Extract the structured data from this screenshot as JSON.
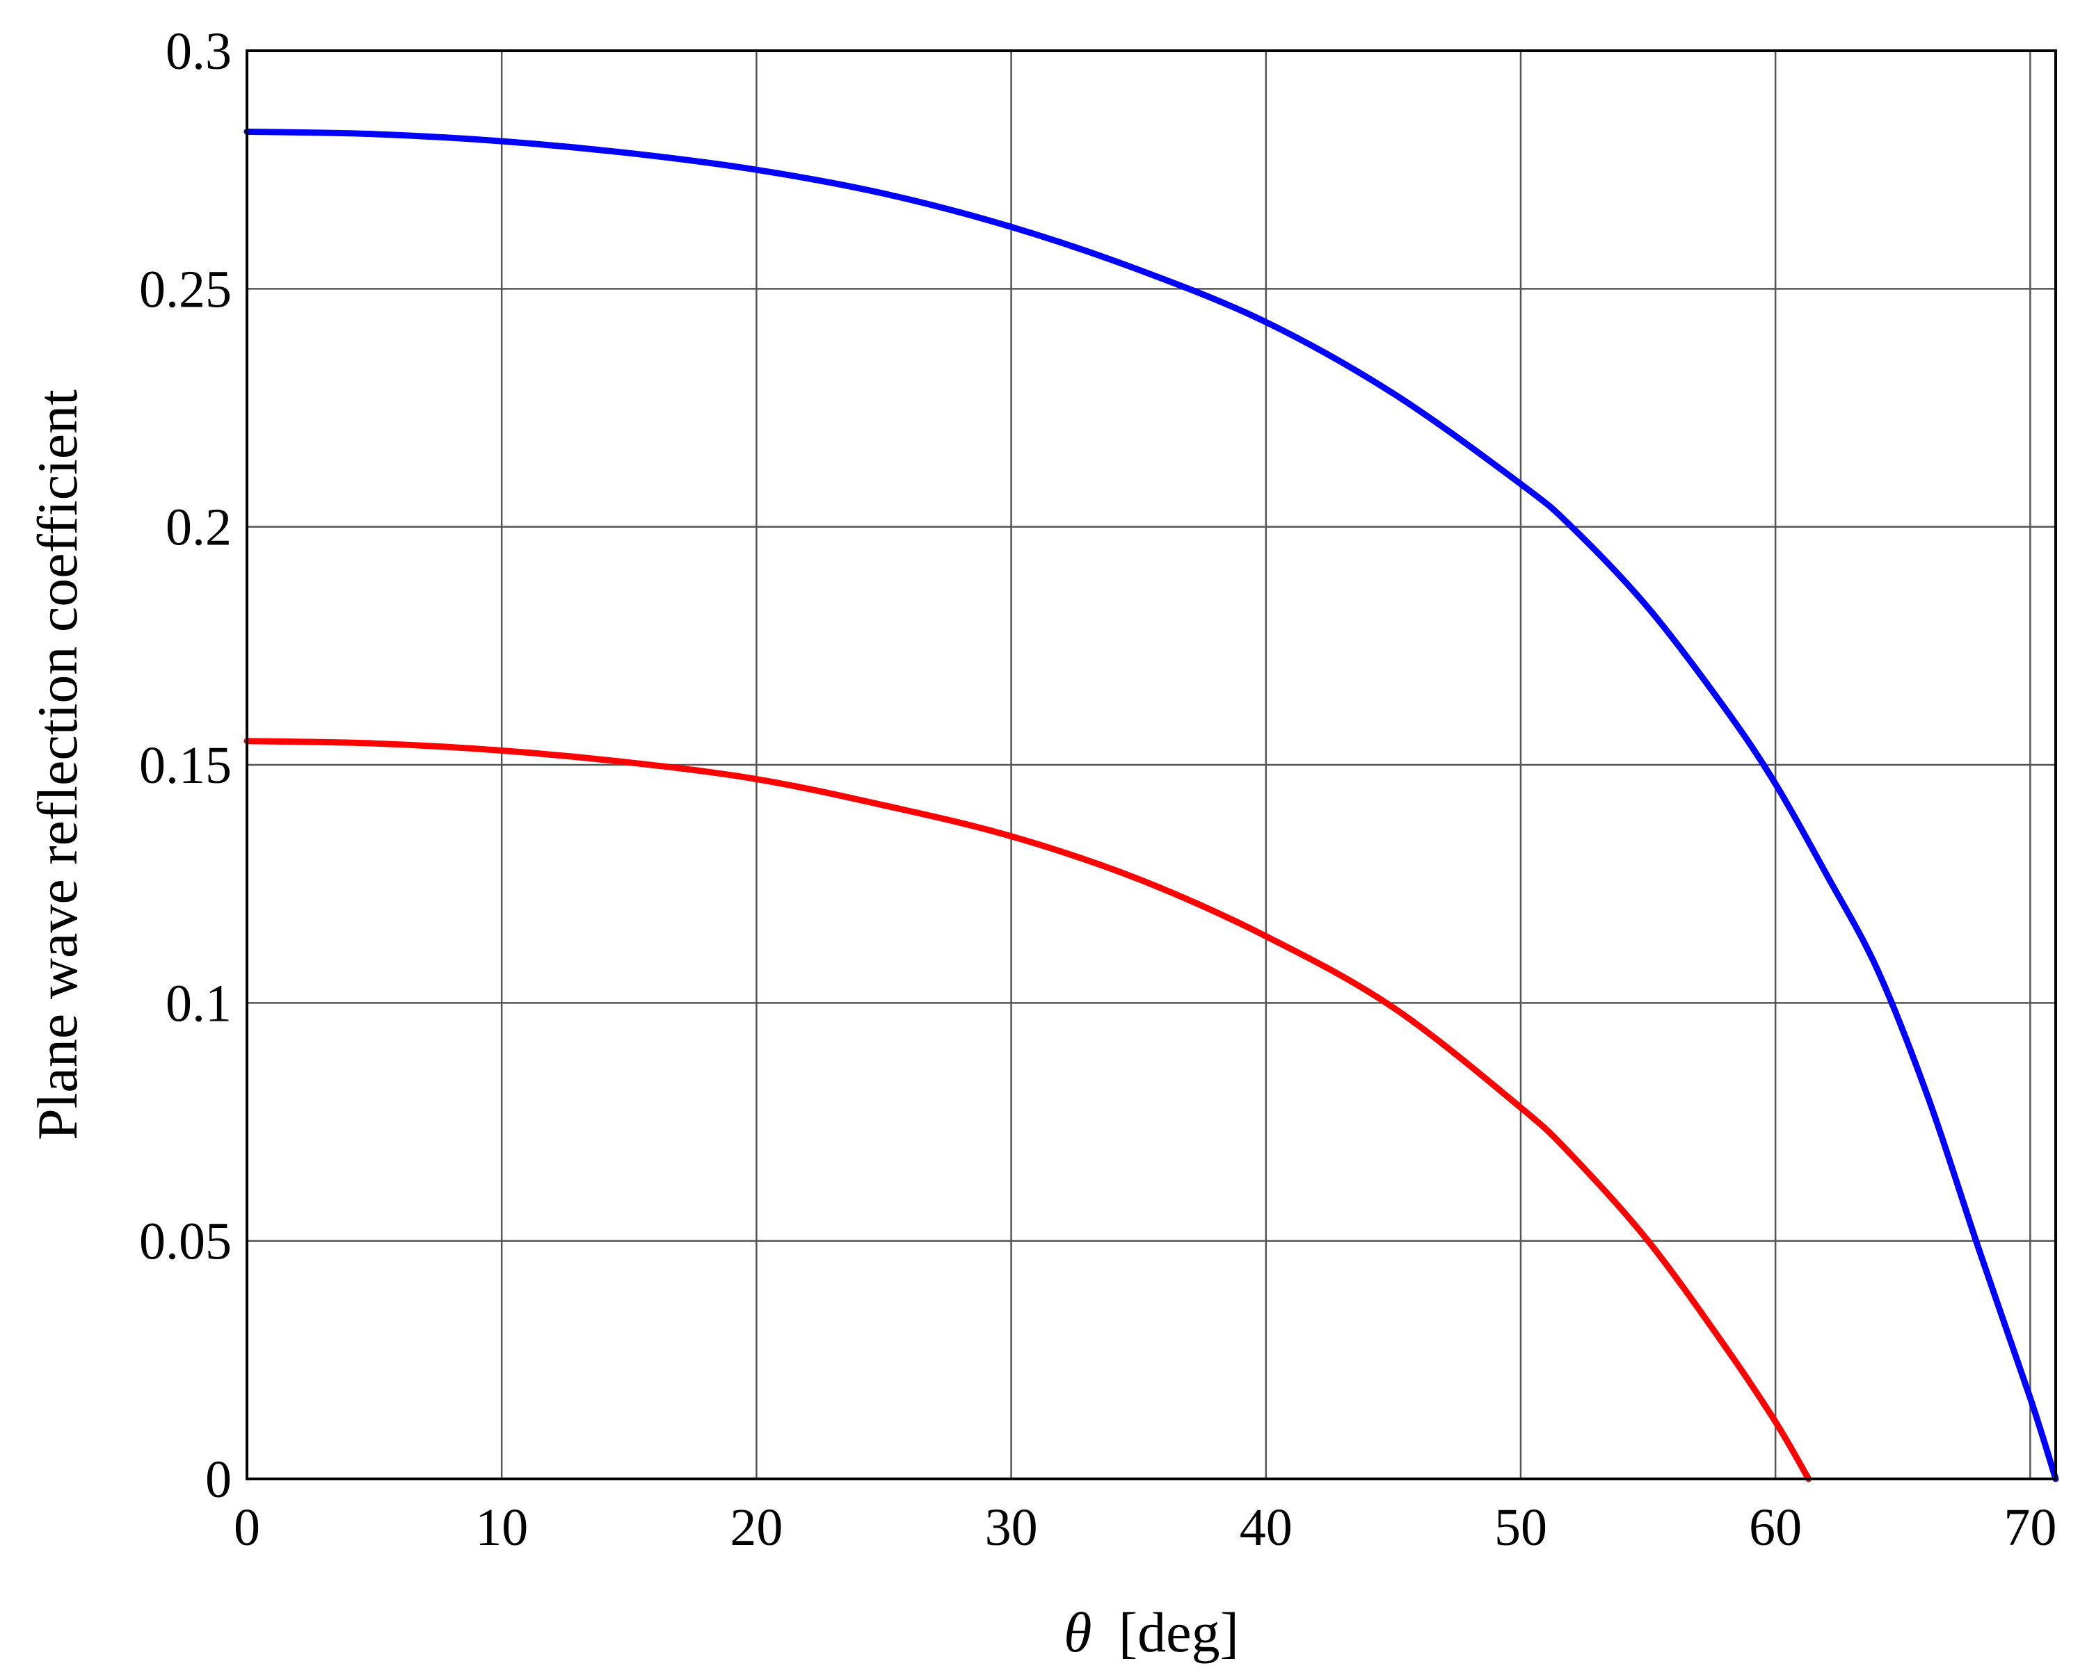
{
  "chart_data": {
    "type": "line",
    "xlabel_symbol": "θ",
    "xlabel_unit": "[deg]",
    "ylabel": "Plane wave reflection coefficient",
    "xlim": [
      0,
      71
    ],
    "ylim": [
      0,
      0.3
    ],
    "xticks": [
      0,
      10,
      20,
      30,
      40,
      50,
      60,
      70
    ],
    "xtick_labels": [
      "0",
      "10",
      "20",
      "30",
      "40",
      "50",
      "60",
      "70"
    ],
    "yticks": [
      0,
      0.05,
      0.1,
      0.15,
      0.2,
      0.25,
      0.3
    ],
    "ytick_labels": [
      "0",
      "0.05",
      "0.1",
      "0.15",
      "0.2",
      "0.25",
      "0.3"
    ],
    "grid": true,
    "legend": "none",
    "series": [
      {
        "color": "#0000ff",
        "x": [
          0,
          5,
          10,
          15,
          20,
          25,
          30,
          35,
          40,
          45,
          50,
          52,
          55,
          58,
          60,
          62,
          64,
          66,
          68,
          70,
          71
        ],
        "y": [
          0.283,
          0.2825,
          0.281,
          0.2785,
          0.275,
          0.27,
          0.263,
          0.254,
          0.243,
          0.228,
          0.209,
          0.2,
          0.183,
          0.162,
          0.146,
          0.127,
          0.107,
          0.08,
          0.048,
          0.017,
          0.0
        ]
      },
      {
        "color": "#ff0000",
        "x": [
          0,
          5,
          10,
          15,
          20,
          25,
          30,
          35,
          40,
          45,
          50,
          52,
          55,
          58,
          60,
          61.3
        ],
        "y": [
          0.155,
          0.1545,
          0.153,
          0.1505,
          0.147,
          0.1415,
          0.135,
          0.126,
          0.114,
          0.099,
          0.078,
          0.068,
          0.05,
          0.028,
          0.012,
          0.0
        ]
      }
    ]
  }
}
